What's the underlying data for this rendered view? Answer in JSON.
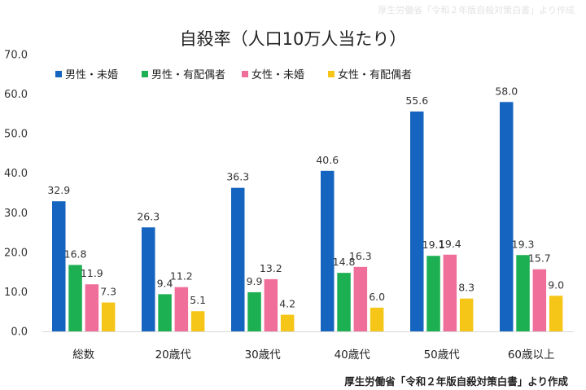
{
  "watermark": "厚生労働省「令和２年版自殺対策白書」より作成",
  "source": "厚生労働省「令和２年版自殺対策白書」より作成",
  "chart_data": {
    "type": "bar",
    "title": "自殺率（人口10万人当たり）",
    "categories": [
      "総数",
      "20歳代",
      "30歳代",
      "40歳代",
      "50歳代",
      "60歳以上"
    ],
    "series": [
      {
        "name": "男性・未婚",
        "color": "#1565c0",
        "values": [
          32.9,
          26.3,
          36.3,
          40.6,
          55.6,
          58.0
        ]
      },
      {
        "name": "男性・有配偶者",
        "color": "#1db053",
        "values": [
          16.8,
          9.4,
          9.9,
          14.8,
          19.1,
          19.3
        ]
      },
      {
        "name": "女性・未婚",
        "color": "#f06e9a",
        "values": [
          11.9,
          11.2,
          13.2,
          16.3,
          19.4,
          15.7
        ]
      },
      {
        "name": "女性・有配偶者",
        "color": "#f5c518",
        "values": [
          7.3,
          5.1,
          4.2,
          6.0,
          8.3,
          9.0
        ]
      }
    ],
    "ylim": [
      0,
      70
    ],
    "yticks": [
      "0.0",
      "10.0",
      "20.0",
      "30.0",
      "40.0",
      "50.0",
      "60.0",
      "70.0"
    ],
    "legend_position": "top-left",
    "grid": false
  }
}
